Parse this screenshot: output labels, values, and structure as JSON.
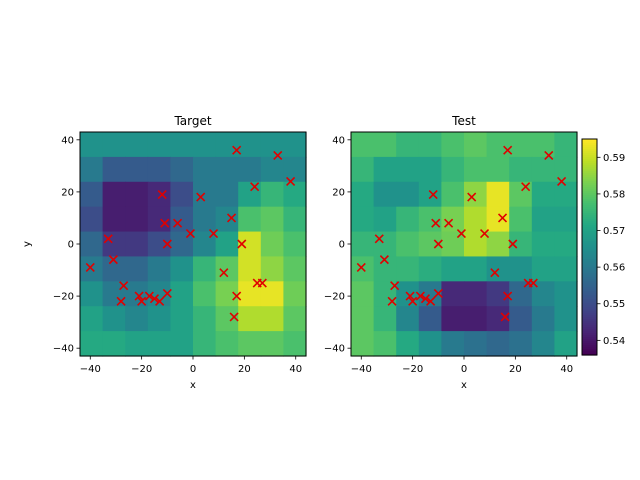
{
  "chart_data": [
    {
      "type": "heatmap",
      "title": "Target",
      "xlabel": "x",
      "ylabel": "y",
      "xlim": [
        -44,
        44
      ],
      "ylim": [
        -43,
        43
      ],
      "xticks": [
        -40,
        -20,
        0,
        20,
        40
      ],
      "yticks": [
        -40,
        -20,
        0,
        20,
        40
      ],
      "xticklabels": [
        "−40",
        "−20",
        "0",
        "20",
        "40"
      ],
      "yticklabels": [
        "−40",
        "−20",
        "0",
        "20",
        "40"
      ],
      "grid": false,
      "colormap": "viridis",
      "z_rows_top_to_bottom": [
        [
          0.566,
          0.566,
          0.566,
          0.566,
          0.566,
          0.566,
          0.566,
          0.566,
          0.566,
          0.566
        ],
        [
          0.56,
          0.553,
          0.553,
          0.553,
          0.556,
          0.56,
          0.56,
          0.56,
          0.563,
          0.563
        ],
        [
          0.553,
          0.541,
          0.541,
          0.543,
          0.55,
          0.56,
          0.56,
          0.57,
          0.575,
          0.572
        ],
        [
          0.55,
          0.541,
          0.541,
          0.543,
          0.553,
          0.56,
          0.563,
          0.578,
          0.58,
          0.575
        ],
        [
          0.556,
          0.546,
          0.546,
          0.55,
          0.556,
          0.563,
          0.57,
          0.591,
          0.582,
          0.578
        ],
        [
          0.56,
          0.556,
          0.556,
          0.56,
          0.566,
          0.575,
          0.58,
          0.591,
          0.585,
          0.58
        ],
        [
          0.566,
          0.56,
          0.56,
          0.563,
          0.57,
          0.578,
          0.583,
          0.593,
          0.593,
          0.582
        ],
        [
          0.57,
          0.566,
          0.563,
          0.566,
          0.57,
          0.575,
          0.58,
          0.588,
          0.588,
          0.58
        ],
        [
          0.572,
          0.572,
          0.57,
          0.57,
          0.57,
          0.575,
          0.578,
          0.58,
          0.58,
          0.578
        ]
      ],
      "points_x": [
        -40,
        -33,
        -31,
        -28,
        -27,
        -21,
        -20,
        -17,
        -15,
        -13,
        -12,
        -11,
        -10,
        -10,
        -6,
        -1,
        3,
        8,
        12,
        15,
        16,
        17,
        17,
        19,
        24,
        25,
        27,
        33,
        38
      ],
      "points_y": [
        -9,
        2,
        -6,
        -22,
        -16,
        -20,
        -22,
        -20,
        -21,
        -22,
        19,
        8,
        -19,
        0,
        8,
        4,
        18,
        4,
        -11,
        10,
        -28,
        -20,
        36,
        0,
        22,
        -15,
        -15,
        34,
        24
      ],
      "marker_color": "#e00000"
    },
    {
      "type": "heatmap",
      "title": "Test",
      "xlabel": "x",
      "ylabel": "",
      "xlim": [
        -44,
        44
      ],
      "ylim": [
        -43,
        43
      ],
      "xticks": [
        -40,
        -20,
        0,
        20,
        40
      ],
      "yticks": [
        -40,
        -20,
        0,
        20,
        40
      ],
      "xticklabels": [
        "−40",
        "−20",
        "0",
        "20",
        "40"
      ],
      "yticklabels": [
        "−40",
        "−20",
        "0",
        "20",
        "40"
      ],
      "grid": false,
      "colormap": "viridis",
      "z_rows_top_to_bottom": [
        [
          0.578,
          0.578,
          0.575,
          0.575,
          0.578,
          0.58,
          0.578,
          0.578,
          0.578,
          0.575
        ],
        [
          0.575,
          0.57,
          0.57,
          0.57,
          0.575,
          0.578,
          0.578,
          0.575,
          0.575,
          0.575
        ],
        [
          0.572,
          0.566,
          0.566,
          0.57,
          0.578,
          0.585,
          0.593,
          0.58,
          0.572,
          0.572
        ],
        [
          0.572,
          0.57,
          0.575,
          0.578,
          0.583,
          0.588,
          0.593,
          0.578,
          0.57,
          0.57
        ],
        [
          0.575,
          0.575,
          0.578,
          0.58,
          0.582,
          0.588,
          0.585,
          0.575,
          0.572,
          0.572
        ],
        [
          0.578,
          0.575,
          0.575,
          0.573,
          0.57,
          0.57,
          0.566,
          0.566,
          0.57,
          0.57
        ],
        [
          0.58,
          0.575,
          0.566,
          0.56,
          0.543,
          0.543,
          0.546,
          0.556,
          0.563,
          0.566
        ],
        [
          0.58,
          0.575,
          0.563,
          0.553,
          0.541,
          0.541,
          0.543,
          0.553,
          0.56,
          0.566
        ],
        [
          0.58,
          0.578,
          0.572,
          0.566,
          0.56,
          0.558,
          0.556,
          0.558,
          0.563,
          0.57
        ]
      ],
      "points_x": [
        -40,
        -33,
        -31,
        -28,
        -27,
        -21,
        -20,
        -17,
        -15,
        -13,
        -12,
        -11,
        -10,
        -10,
        -6,
        -1,
        3,
        8,
        12,
        15,
        16,
        17,
        17,
        19,
        24,
        25,
        27,
        33,
        38
      ],
      "points_y": [
        -9,
        2,
        -6,
        -22,
        -16,
        -20,
        -22,
        -20,
        -21,
        -22,
        19,
        8,
        -19,
        0,
        8,
        4,
        18,
        4,
        -11,
        10,
        -28,
        -20,
        36,
        0,
        22,
        -15,
        -15,
        34,
        24
      ],
      "marker_color": "#e00000"
    }
  ],
  "colorbar": {
    "min": 0.536,
    "max": 0.595,
    "ticks": [
      0.54,
      0.55,
      0.56,
      0.57,
      0.58,
      0.59
    ],
    "ticklabels": [
      "0.54",
      "0.55",
      "0.56",
      "0.57",
      "0.58",
      "0.59"
    ]
  }
}
